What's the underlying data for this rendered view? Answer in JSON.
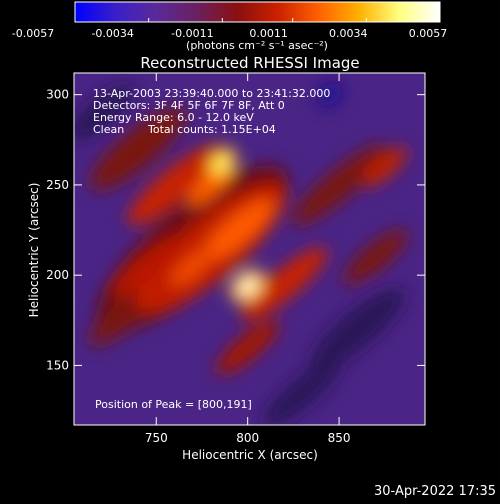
{
  "chart_data": {
    "type": "heatmap",
    "title": "Reconstructed RHESSI Image",
    "xlabel": "Heliocentric X (arcsec)",
    "ylabel": "Heliocentric Y (arcsec)",
    "xlim": [
      705,
      897
    ],
    "ylim": [
      117,
      312
    ],
    "x_ticks": [
      "750",
      "800",
      "850"
    ],
    "x_tick_values": [
      750,
      800,
      850
    ],
    "y_ticks": [
      "150",
      "200",
      "250",
      "300"
    ],
    "y_tick_values": [
      150,
      200,
      250,
      300
    ],
    "colorbar": {
      "min": -0.0057,
      "max": 0.0057,
      "tick_labels": [
        "-0.0057",
        "-0.0034",
        "-0.0011",
        "0.0011",
        "0.0034",
        "0.0057"
      ],
      "tick_values": [
        -0.0057,
        -0.0034,
        -0.0011,
        0.0011,
        0.0034,
        0.0057
      ],
      "unit_label": "(photons cm⁻² s⁻¹ asec⁻²)",
      "colors": [
        "#0000ff",
        "#3a1fc8",
        "#5a2a9a",
        "#6a2060",
        "#8a1010",
        "#cc2000",
        "#ff6000",
        "#ffb000",
        "#ffff80",
        "#ffffff"
      ]
    },
    "annotations": {
      "time_range": "13-Apr-2003 23:39:40.000 to 23:41:32.000",
      "detectors": "Detectors: 3F 4F 5F 6F 7F 8F, Att 0",
      "energy": "Energy Range: 6.0 - 12.0 keV",
      "clean_method": "Clean",
      "total_counts": "Total counts: 1.15E+04",
      "peak": "Position of Peak = [800,191]"
    },
    "peak_position": [
      800,
      191
    ],
    "secondary_peak": [
      786,
      262
    ],
    "timestamp": "30-Apr-2022 17:35"
  }
}
